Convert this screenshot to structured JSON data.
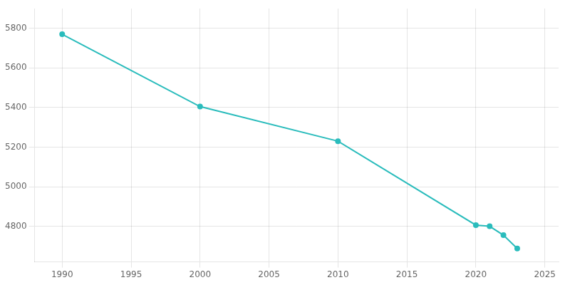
{
  "chart_data": {
    "type": "line",
    "x": [
      1990,
      2000,
      2010,
      2020,
      2021,
      2022,
      2023
    ],
    "values": [
      5770,
      5405,
      5230,
      4806,
      4800,
      4755,
      4688
    ],
    "color": "#2abcbc",
    "marker": "circle",
    "xlim": [
      1988,
      2026
    ],
    "ylim": [
      4620,
      5900
    ],
    "xticks": [
      1990,
      1995,
      2000,
      2005,
      2010,
      2015,
      2020,
      2025
    ],
    "yticks": [
      4800,
      5000,
      5200,
      5400,
      5600,
      5800
    ],
    "grid": true
  }
}
